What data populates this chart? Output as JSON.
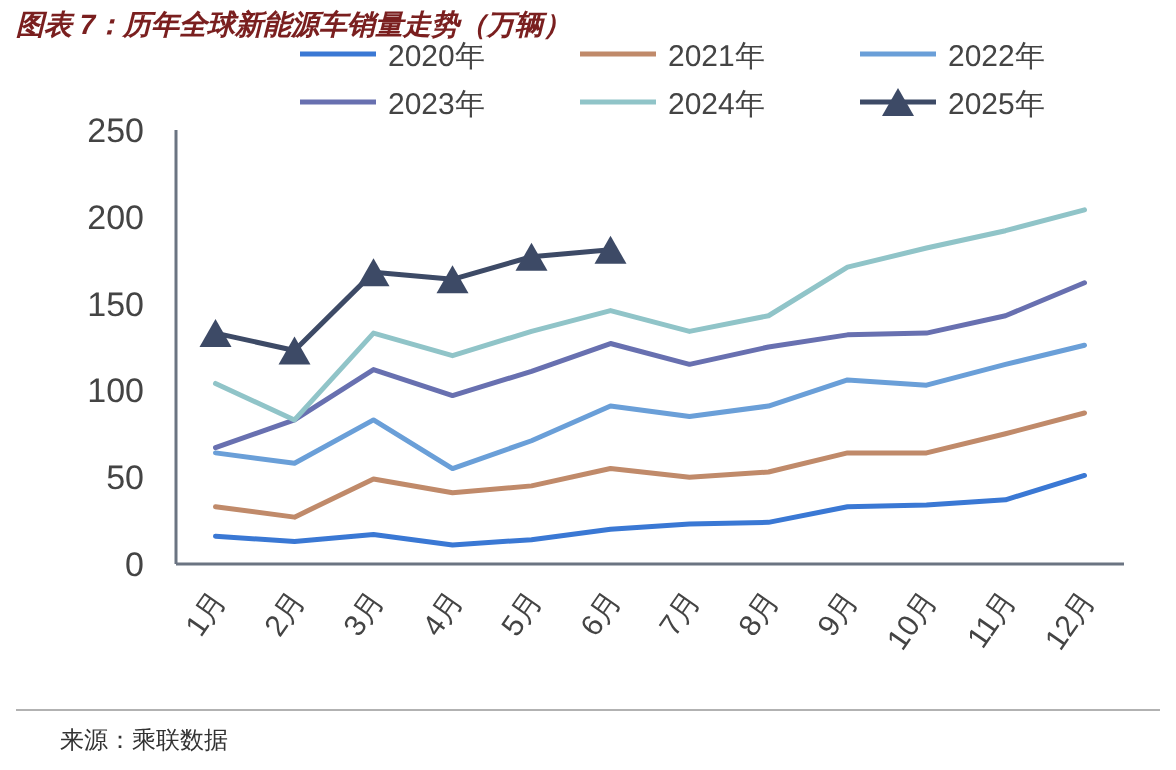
{
  "chart_data": {
    "type": "line",
    "title": "图表 7：历年全球新能源车销量走势（万辆）",
    "categories": [
      "1月",
      "2月",
      "3月",
      "4月",
      "5月",
      "6月",
      "7月",
      "8月",
      "9月",
      "10月",
      "11月",
      "12月"
    ],
    "series": [
      {
        "name": "2020年",
        "color": "#3a78d4",
        "values": [
          16,
          13,
          17,
          11,
          14,
          20,
          23,
          24,
          33,
          34,
          37,
          51
        ]
      },
      {
        "name": "2021年",
        "color": "#c08a6a",
        "values": [
          33,
          27,
          49,
          41,
          45,
          55,
          50,
          53,
          64,
          64,
          75,
          87
        ]
      },
      {
        "name": "2022年",
        "color": "#6a9fd8",
        "values": [
          64,
          58,
          83,
          55,
          71,
          91,
          85,
          91,
          106,
          103,
          115,
          126
        ]
      },
      {
        "name": "2023年",
        "color": "#6870b0",
        "values": [
          67,
          83,
          112,
          97,
          111,
          127,
          115,
          125,
          132,
          133,
          143,
          162
        ]
      },
      {
        "name": "2024年",
        "color": "#90c4c8",
        "values": [
          104,
          83,
          133,
          120,
          134,
          146,
          134,
          143,
          171,
          182,
          192,
          204
        ]
      },
      {
        "name": "2025年",
        "color": "#3d4a66",
        "marker": "triangle",
        "values": [
          133,
          123,
          168,
          164,
          177,
          181,
          null,
          null,
          null,
          null,
          null,
          null
        ]
      }
    ],
    "ylim": [
      0,
      250
    ],
    "yticks": [
      0,
      50,
      100,
      150,
      200,
      250
    ],
    "grid": false,
    "legend": "top",
    "annotations": [
      "来源：乘联数据"
    ]
  }
}
